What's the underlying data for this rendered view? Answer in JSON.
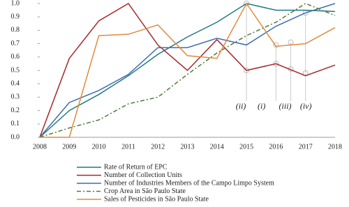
{
  "chart_data": {
    "type": "line",
    "categories": [
      "2008",
      "2009",
      "2010",
      "2011",
      "2012",
      "2013",
      "2014",
      "2015",
      "2016",
      "2017",
      "2018"
    ],
    "series": [
      {
        "name": "Rate of Return of EPC",
        "color": "#1f7a80",
        "dash": "solid",
        "values": [
          0,
          0.2,
          0.32,
          0.46,
          0.62,
          0.75,
          0.86,
          1.0,
          0.95,
          0.95,
          0.94
        ]
      },
      {
        "name": "Number of Collection Units",
        "color": "#a6262a",
        "dash": "solid",
        "values": [
          0,
          0.59,
          0.87,
          1.0,
          0.69,
          0.5,
          0.73,
          0.5,
          0.55,
          0.46,
          0.54
        ]
      },
      {
        "name": "Number of Industries Members of the Campo Limpo System",
        "color": "#3c6db0",
        "dash": "solid",
        "values": [
          0,
          0.26,
          0.35,
          0.47,
          0.67,
          0.67,
          0.74,
          0.69,
          0.83,
          0.93,
          1.0
        ]
      },
      {
        "name": "Crop Area in São Paulo State",
        "color": "#4f7a3a",
        "dash": "dash-dot",
        "values": [
          0,
          0.07,
          0.13,
          0.25,
          0.3,
          0.47,
          0.63,
          0.76,
          0.86,
          1.0,
          0.91
        ]
      },
      {
        "name": "Sales of Pesticides in São Paulo State",
        "color": "#e08a3c",
        "dash": "solid",
        "values": [
          0,
          0,
          0.76,
          0.77,
          0.84,
          0.61,
          0.59,
          1.0,
          0.68,
          0.7,
          0.82
        ]
      }
    ],
    "ylim": [
      0,
      1
    ],
    "yticks": [
      {
        "value": 0,
        "label": "0.0"
      },
      0.1,
      0.2,
      0.3,
      0.4,
      0.5,
      0.6,
      0.7,
      0.8,
      0.9,
      {
        "value": 1,
        "label": "1.0"
      }
    ],
    "annotations": [
      "(ii)",
      "(i)",
      "(iii)",
      "(iv)"
    ]
  }
}
